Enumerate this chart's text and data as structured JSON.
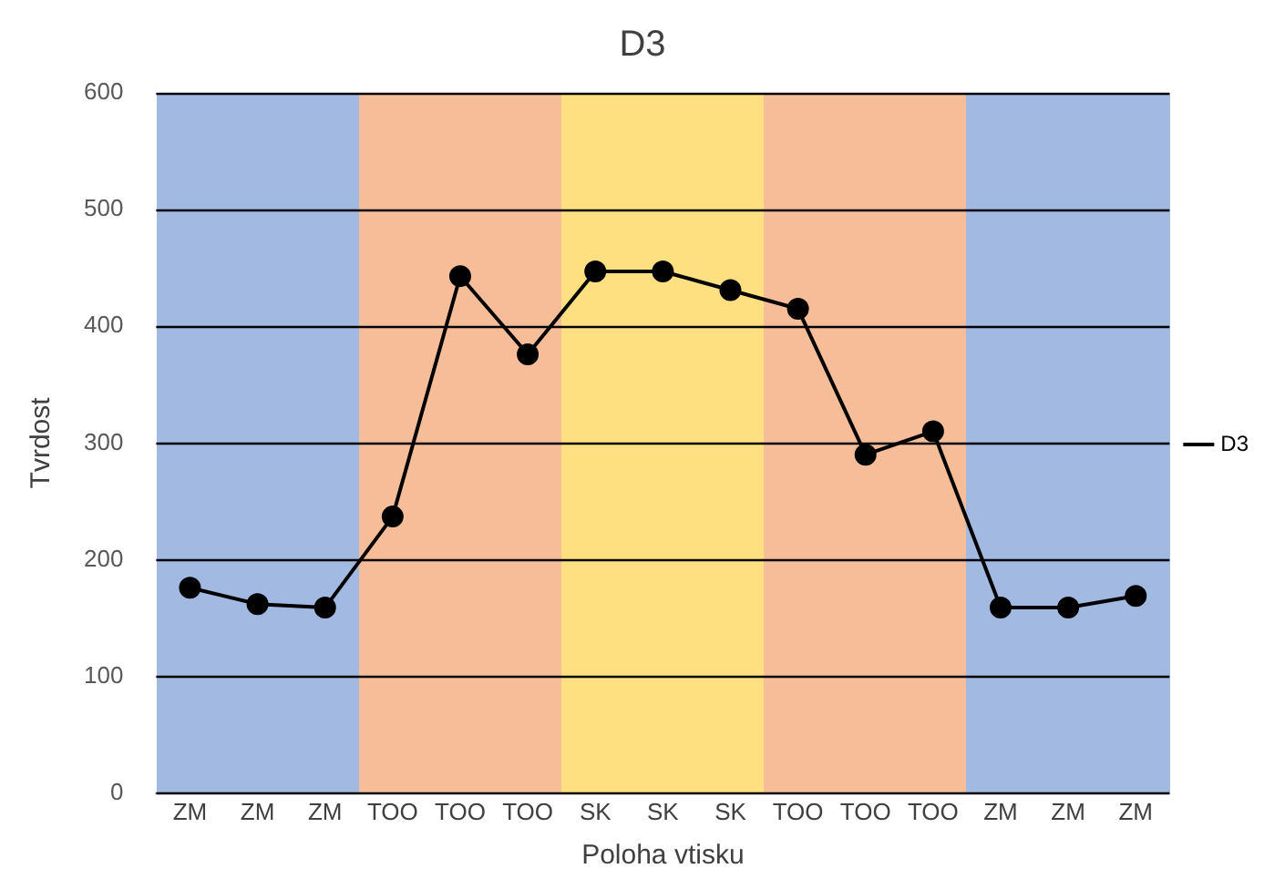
{
  "chart_data": {
    "type": "line",
    "title": "D3",
    "xlabel": "Poloha vtisku",
    "ylabel": "Tvrdost",
    "categories": [
      "ZM",
      "ZM",
      "ZM",
      "TOO",
      "TOO",
      "TOO",
      "SK",
      "SK",
      "SK",
      "TOO",
      "TOO",
      "TOO",
      "ZM",
      "ZM",
      "ZM"
    ],
    "series": [
      {
        "name": "D3",
        "color": "#000000",
        "values": [
          176,
          162,
          159,
          237,
          443,
          376,
          447,
          447,
          431,
          415,
          290,
          310,
          159,
          159,
          169
        ]
      }
    ],
    "ylim": [
      0,
      600
    ],
    "yticks": [
      0,
      100,
      200,
      300,
      400,
      500,
      600
    ],
    "grid": "y",
    "legend": "right",
    "marker": "circle",
    "line_style": "solid"
  }
}
